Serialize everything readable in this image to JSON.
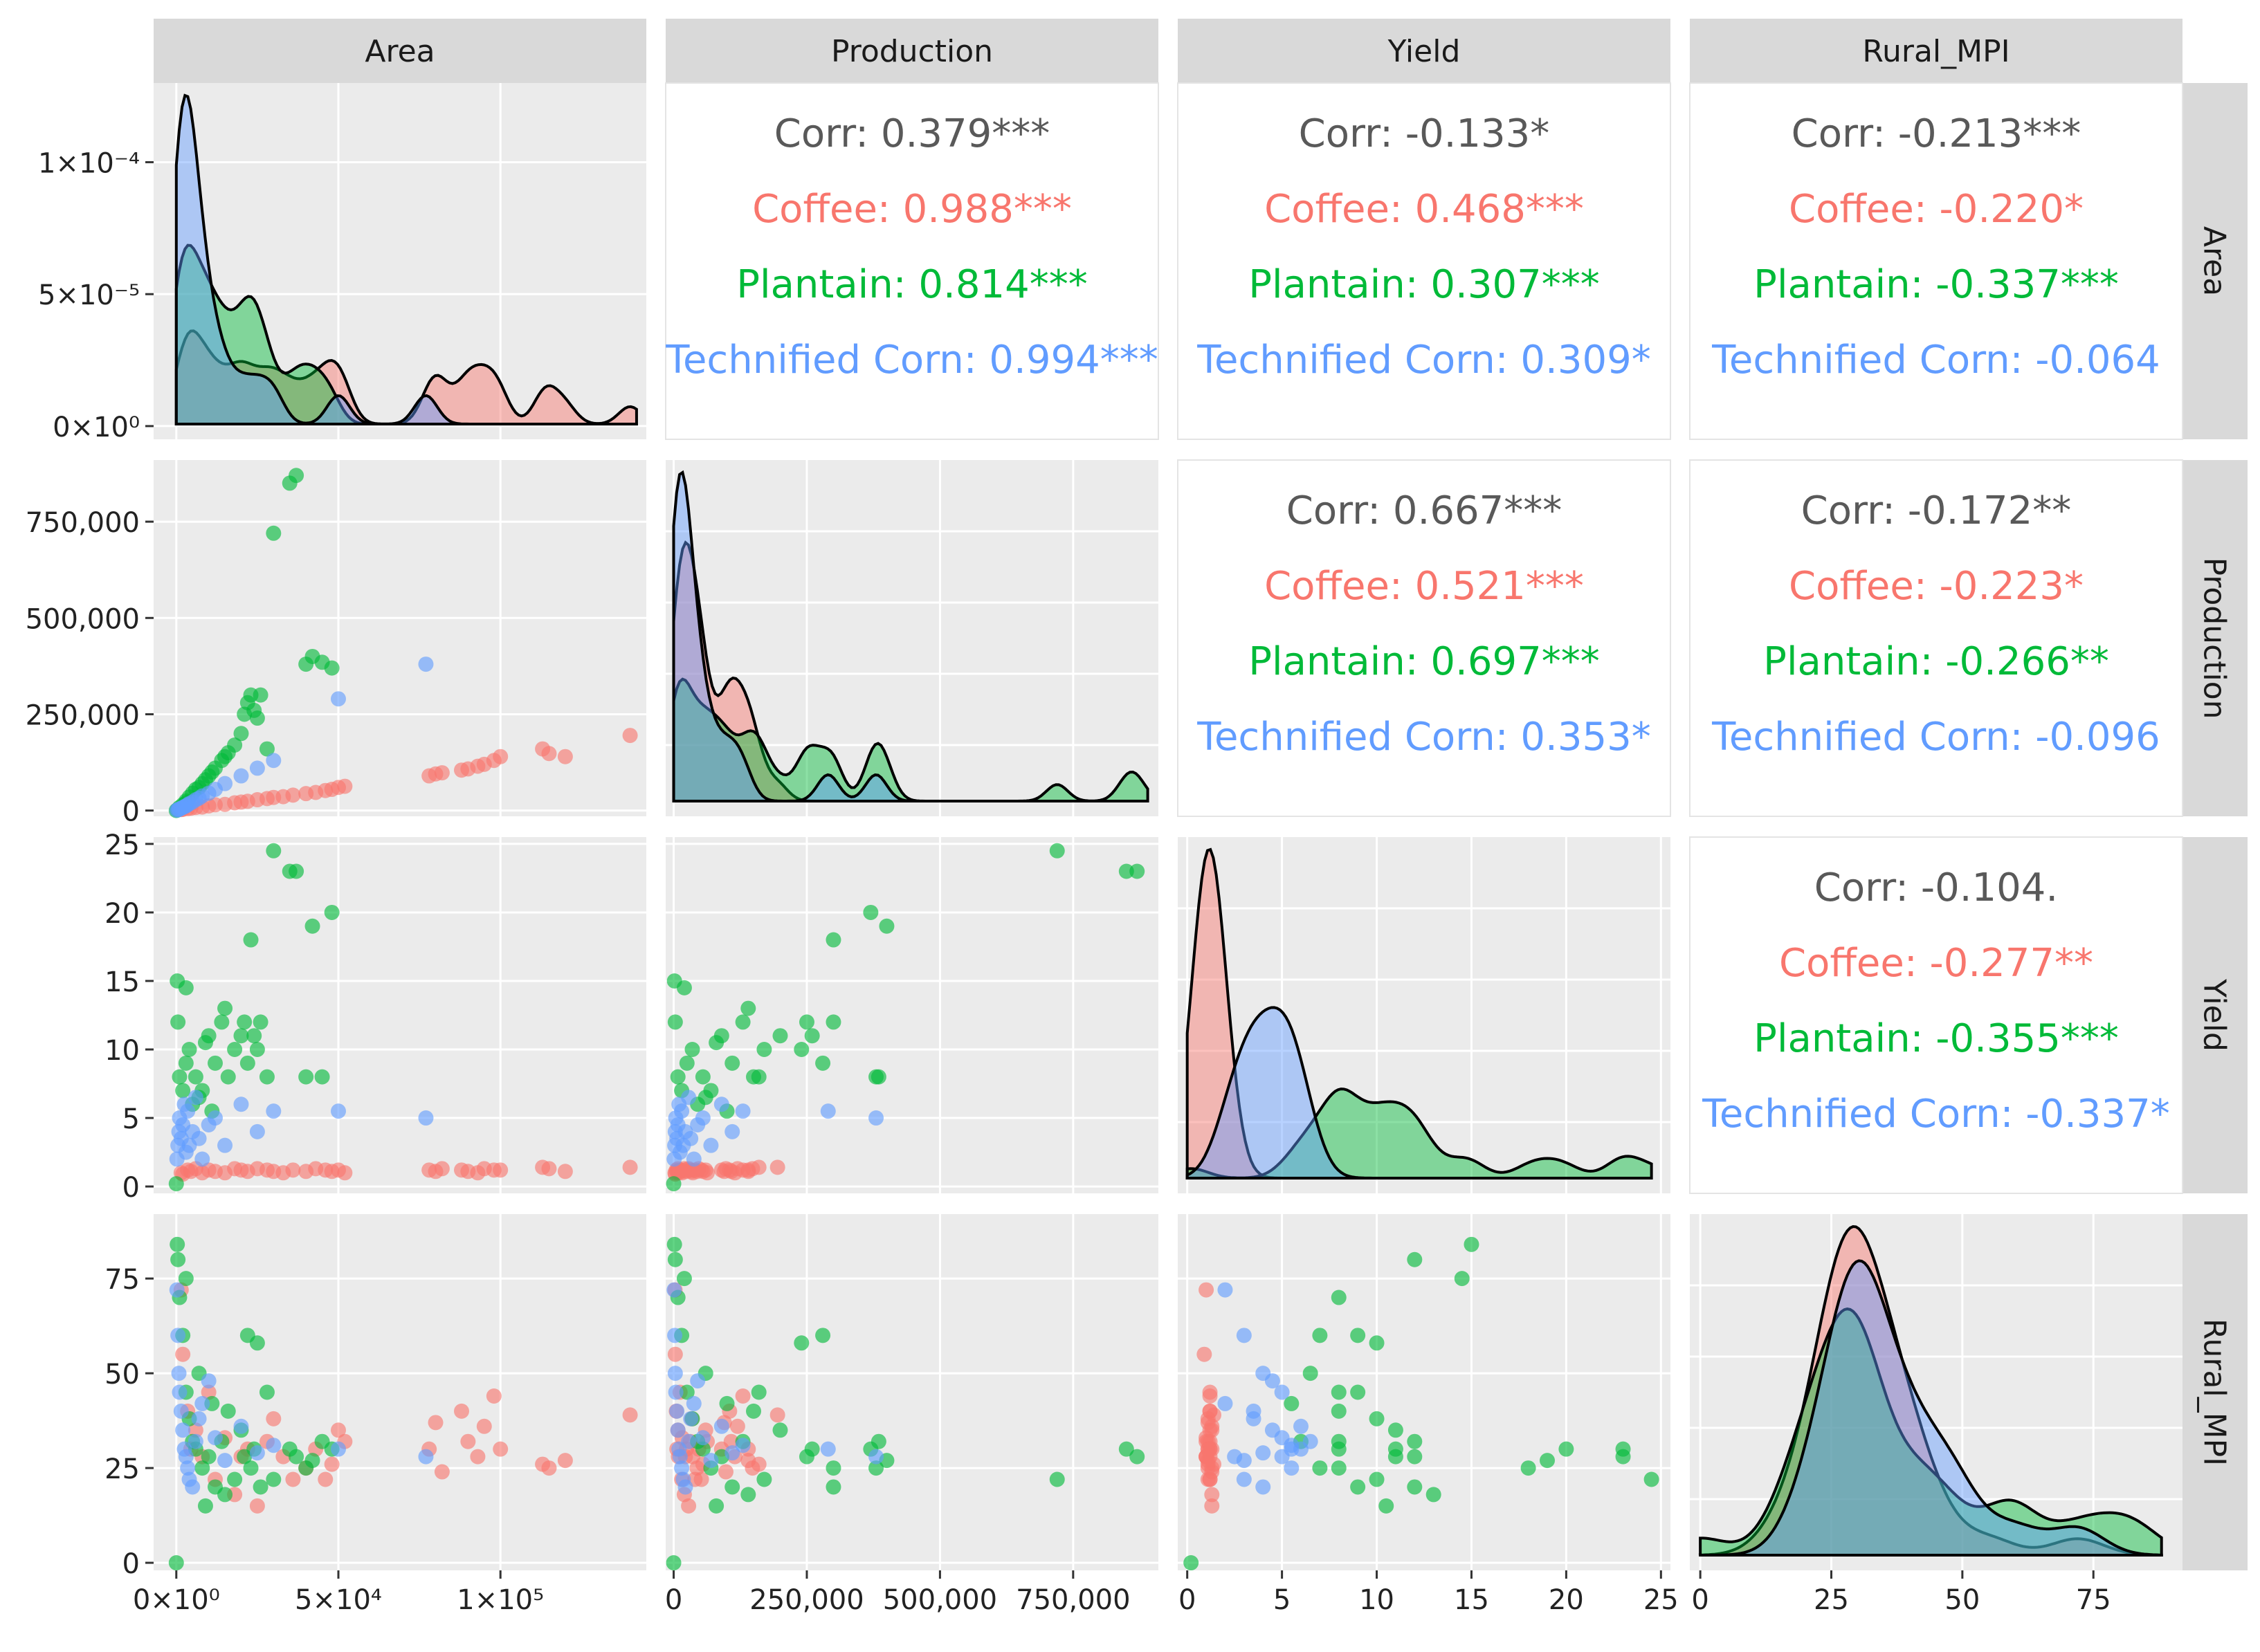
{
  "chart_data": {
    "type": "scatter",
    "title": "",
    "variables": [
      "Area",
      "Production",
      "Yield",
      "Rural_MPI"
    ],
    "groups": [
      {
        "name": "Coffee",
        "color": "#F8766D"
      },
      {
        "name": "Plantain",
        "color": "#00BA38"
      },
      {
        "name": "Technified Corn",
        "color": "#619CFF"
      }
    ],
    "axes": {
      "Area": {
        "lim": [
          -7000,
          145000
        ],
        "ticks": [
          0,
          50000,
          100000
        ],
        "tick_labels": [
          "0×10⁰",
          "5×10⁴",
          "1×10⁵"
        ]
      },
      "Production": {
        "lim": [
          -15000,
          910000
        ],
        "ticks": [
          0,
          250000,
          500000,
          750000
        ],
        "tick_labels": [
          "0",
          "250,000",
          "500,000",
          "750,000"
        ]
      },
      "Yield": {
        "lim": [
          -0.5,
          25.5
        ],
        "ticks": [
          0,
          5,
          10,
          15,
          20,
          25
        ],
        "tick_labels": [
          "0",
          "5",
          "10",
          "15",
          "20",
          "25"
        ]
      },
      "Rural_MPI": {
        "lim": [
          -2,
          92
        ],
        "ticks": [
          0,
          25,
          50,
          75
        ],
        "tick_labels": [
          "0",
          "25",
          "50",
          "75"
        ]
      }
    },
    "density_y_axis": {
      "lim": [
        -5e-06,
        0.00013
      ],
      "ticks": [
        0,
        5e-05,
        0.0001
      ],
      "tick_labels": [
        "0×10⁰",
        "5×10⁻⁵",
        "1×10⁻⁴"
      ]
    },
    "correlations": [
      {
        "row": "Area",
        "col": "Production",
        "lines": [
          "Corr: 0.379***",
          "Coffee: 0.988***",
          "Plantain: 0.814***",
          "Technified Corn: 0.994***"
        ]
      },
      {
        "row": "Area",
        "col": "Yield",
        "lines": [
          "Corr: -0.133*",
          "Coffee: 0.468***",
          "Plantain: 0.307***",
          "Technified Corn: 0.309*"
        ]
      },
      {
        "row": "Area",
        "col": "Rural_MPI",
        "lines": [
          "Corr: -0.213***",
          "Coffee: -0.220*",
          "Plantain: -0.337***",
          "Technified Corn: -0.064"
        ]
      },
      {
        "row": "Production",
        "col": "Yield",
        "lines": [
          "Corr: 0.667***",
          "Coffee: 0.521***",
          "Plantain: 0.697***",
          "Technified Corn: 0.353*"
        ]
      },
      {
        "row": "Production",
        "col": "Rural_MPI",
        "lines": [
          "Corr: -0.172**",
          "Coffee: -0.223*",
          "Plantain: -0.266**",
          "Technified Corn: -0.096"
        ]
      },
      {
        "row": "Yield",
        "col": "Rural_MPI",
        "lines": [
          "Corr: -0.104.",
          "Coffee: -0.277**",
          "Plantain: -0.355***",
          "Technified Corn: -0.337*"
        ]
      }
    ],
    "samples": {
      "Coffee": [
        {
          "area": 1500,
          "production": 2500,
          "yield": 1.0,
          "mpi": 72
        },
        {
          "area": 2000,
          "production": 3000,
          "yield": 0.9,
          "mpi": 55
        },
        {
          "area": 3500,
          "production": 5000,
          "yield": 1.2,
          "mpi": 40
        },
        {
          "area": 4500,
          "production": 6000,
          "yield": 1.1,
          "mpi": 30
        },
        {
          "area": 6000,
          "production": 8000,
          "yield": 1.3,
          "mpi": 35
        },
        {
          "area": 8000,
          "production": 9000,
          "yield": 1.0,
          "mpi": 28
        },
        {
          "area": 10000,
          "production": 12000,
          "yield": 1.2,
          "mpi": 45
        },
        {
          "area": 12000,
          "production": 15000,
          "yield": 1.1,
          "mpi": 22
        },
        {
          "area": 15000,
          "production": 16000,
          "yield": 1.0,
          "mpi": 33
        },
        {
          "area": 18000,
          "production": 20000,
          "yield": 1.3,
          "mpi": 18
        },
        {
          "area": 20000,
          "production": 22000,
          "yield": 1.2,
          "mpi": 28
        },
        {
          "area": 22000,
          "production": 24000,
          "yield": 1.1,
          "mpi": 30
        },
        {
          "area": 25000,
          "production": 28000,
          "yield": 1.3,
          "mpi": 15
        },
        {
          "area": 28000,
          "production": 31000,
          "yield": 1.2,
          "mpi": 32
        },
        {
          "area": 30000,
          "production": 34000,
          "yield": 1.1,
          "mpi": 38
        },
        {
          "area": 33000,
          "production": 36000,
          "yield": 1.0,
          "mpi": 28
        },
        {
          "area": 36000,
          "production": 40000,
          "yield": 1.2,
          "mpi": 22
        },
        {
          "area": 40000,
          "production": 44000,
          "yield": 1.1,
          "mpi": 25
        },
        {
          "area": 43000,
          "production": 47000,
          "yield": 1.3,
          "mpi": 30
        },
        {
          "area": 46000,
          "production": 52000,
          "yield": 1.2,
          "mpi": 22
        },
        {
          "area": 48000,
          "production": 55000,
          "yield": 1.1,
          "mpi": 26
        },
        {
          "area": 50000,
          "production": 60000,
          "yield": 1.2,
          "mpi": 35
        },
        {
          "area": 52000,
          "production": 63000,
          "yield": 1.0,
          "mpi": 32
        },
        {
          "area": 78000,
          "production": 90000,
          "yield": 1.2,
          "mpi": 30
        },
        {
          "area": 80000,
          "production": 95000,
          "yield": 1.1,
          "mpi": 37
        },
        {
          "area": 82000,
          "production": 98000,
          "yield": 1.3,
          "mpi": 24
        },
        {
          "area": 88000,
          "production": 105000,
          "yield": 1.2,
          "mpi": 40
        },
        {
          "area": 90000,
          "production": 108000,
          "yield": 1.1,
          "mpi": 32
        },
        {
          "area": 93000,
          "production": 115000,
          "yield": 1.0,
          "mpi": 28
        },
        {
          "area": 95000,
          "production": 120000,
          "yield": 1.3,
          "mpi": 36
        },
        {
          "area": 98000,
          "production": 130000,
          "yield": 1.2,
          "mpi": 44
        },
        {
          "area": 100000,
          "production": 140000,
          "yield": 1.2,
          "mpi": 30
        },
        {
          "area": 113000,
          "production": 160000,
          "yield": 1.4,
          "mpi": 26
        },
        {
          "area": 115000,
          "production": 148000,
          "yield": 1.3,
          "mpi": 25
        },
        {
          "area": 120000,
          "production": 140000,
          "yield": 1.1,
          "mpi": 27
        },
        {
          "area": 140000,
          "production": 195000,
          "yield": 1.4,
          "mpi": 39
        }
      ],
      "Plantain": [
        {
          "area": 0,
          "production": 0,
          "yield": 0.2,
          "mpi": 0
        },
        {
          "area": 300,
          "production": 1500,
          "yield": 15.0,
          "mpi": 84
        },
        {
          "area": 500,
          "production": 3000,
          "yield": 12.0,
          "mpi": 80
        },
        {
          "area": 1000,
          "production": 8000,
          "yield": 8.0,
          "mpi": 70
        },
        {
          "area": 2000,
          "production": 15000,
          "yield": 7.0,
          "mpi": 60
        },
        {
          "area": 3000,
          "production": 25000,
          "yield": 9.0,
          "mpi": 45
        },
        {
          "area": 4000,
          "production": 35000,
          "yield": 10.0,
          "mpi": 38
        },
        {
          "area": 5000,
          "production": 45000,
          "yield": 6.0,
          "mpi": 32
        },
        {
          "area": 6000,
          "production": 55000,
          "yield": 8.0,
          "mpi": 30
        },
        {
          "area": 8000,
          "production": 70000,
          "yield": 7.0,
          "mpi": 25
        },
        {
          "area": 10000,
          "production": 90000,
          "yield": 11.0,
          "mpi": 28
        },
        {
          "area": 12000,
          "production": 110000,
          "yield": 9.0,
          "mpi": 20
        },
        {
          "area": 14000,
          "production": 130000,
          "yield": 12.0,
          "mpi": 32
        },
        {
          "area": 16000,
          "production": 150000,
          "yield": 8.0,
          "mpi": 40
        },
        {
          "area": 18000,
          "production": 170000,
          "yield": 10.0,
          "mpi": 22
        },
        {
          "area": 20000,
          "production": 200000,
          "yield": 11.0,
          "mpi": 35
        },
        {
          "area": 21000,
          "production": 250000,
          "yield": 12.0,
          "mpi": 28
        },
        {
          "area": 22000,
          "production": 280000,
          "yield": 9.0,
          "mpi": 60
        },
        {
          "area": 23000,
          "production": 300000,
          "yield": 18.0,
          "mpi": 25
        },
        {
          "area": 24000,
          "production": 260000,
          "yield": 11.0,
          "mpi": 30
        },
        {
          "area": 25000,
          "production": 240000,
          "yield": 10.0,
          "mpi": 58
        },
        {
          "area": 26000,
          "production": 300000,
          "yield": 12.0,
          "mpi": 20
        },
        {
          "area": 28000,
          "production": 160000,
          "yield": 8.0,
          "mpi": 45
        },
        {
          "area": 30000,
          "production": 720000,
          "yield": 24.5,
          "mpi": 22
        },
        {
          "area": 35000,
          "production": 850000,
          "yield": 23.0,
          "mpi": 30
        },
        {
          "area": 37000,
          "production": 870000,
          "yield": 23.0,
          "mpi": 28
        },
        {
          "area": 40000,
          "production": 380000,
          "yield": 8.0,
          "mpi": 25
        },
        {
          "area": 42000,
          "production": 400000,
          "yield": 19.0,
          "mpi": 27
        },
        {
          "area": 45000,
          "production": 385000,
          "yield": 8.0,
          "mpi": 32
        },
        {
          "area": 48000,
          "production": 370000,
          "yield": 20.0,
          "mpi": 30
        },
        {
          "area": 3000,
          "production": 20000,
          "yield": 14.5,
          "mpi": 75
        },
        {
          "area": 7000,
          "production": 60000,
          "yield": 6.5,
          "mpi": 50
        },
        {
          "area": 9000,
          "production": 80000,
          "yield": 10.5,
          "mpi": 15
        },
        {
          "area": 11000,
          "production": 100000,
          "yield": 5.5,
          "mpi": 42
        },
        {
          "area": 15000,
          "production": 140000,
          "yield": 13.0,
          "mpi": 18
        }
      ],
      "Technified Corn": [
        {
          "area": 200,
          "production": 1000,
          "yield": 2.0,
          "mpi": 72
        },
        {
          "area": 500,
          "production": 2000,
          "yield": 3.0,
          "mpi": 60
        },
        {
          "area": 800,
          "production": 3000,
          "yield": 4.0,
          "mpi": 50
        },
        {
          "area": 1000,
          "production": 4000,
          "yield": 5.0,
          "mpi": 45
        },
        {
          "area": 1500,
          "production": 6000,
          "yield": 3.5,
          "mpi": 40
        },
        {
          "area": 2000,
          "production": 8000,
          "yield": 4.5,
          "mpi": 35
        },
        {
          "area": 2500,
          "production": 10000,
          "yield": 6.0,
          "mpi": 30
        },
        {
          "area": 3000,
          "production": 12000,
          "yield": 2.5,
          "mpi": 28
        },
        {
          "area": 3500,
          "production": 15000,
          "yield": 5.5,
          "mpi": 25
        },
        {
          "area": 4000,
          "production": 18000,
          "yield": 3.0,
          "mpi": 22
        },
        {
          "area": 5000,
          "production": 22000,
          "yield": 4.0,
          "mpi": 20
        },
        {
          "area": 6000,
          "production": 28000,
          "yield": 6.5,
          "mpi": 32
        },
        {
          "area": 7000,
          "production": 32000,
          "yield": 3.5,
          "mpi": 38
        },
        {
          "area": 8000,
          "production": 38000,
          "yield": 2.0,
          "mpi": 42
        },
        {
          "area": 10000,
          "production": 45000,
          "yield": 4.5,
          "mpi": 48
        },
        {
          "area": 12000,
          "production": 55000,
          "yield": 5.0,
          "mpi": 33
        },
        {
          "area": 15000,
          "production": 70000,
          "yield": 3.0,
          "mpi": 27
        },
        {
          "area": 20000,
          "production": 90000,
          "yield": 6.0,
          "mpi": 36
        },
        {
          "area": 25000,
          "production": 110000,
          "yield": 4.0,
          "mpi": 29
        },
        {
          "area": 30000,
          "production": 130000,
          "yield": 5.5,
          "mpi": 31
        },
        {
          "area": 50000,
          "production": 290000,
          "yield": 5.5,
          "mpi": 30
        },
        {
          "area": 77000,
          "production": 380000,
          "yield": 5.0,
          "mpi": 28
        }
      ]
    }
  }
}
